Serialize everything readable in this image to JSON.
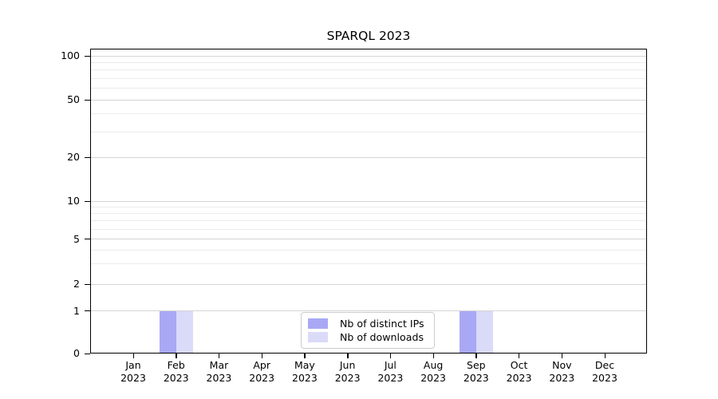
{
  "chart_data": {
    "type": "bar",
    "title": "SPARQL 2023",
    "categories": [
      "Jan",
      "Feb",
      "Mar",
      "Apr",
      "May",
      "Jun",
      "Jul",
      "Aug",
      "Sep",
      "Oct",
      "Nov",
      "Dec"
    ],
    "category_year": "2023",
    "series": [
      {
        "name": "Nb of distinct IPs",
        "color": "#a8a8f5",
        "values": [
          0,
          1,
          0,
          0,
          0,
          0,
          0,
          0,
          1,
          0,
          0,
          0
        ]
      },
      {
        "name": "Nb of downloads",
        "color": "#dadaf9",
        "values": [
          0,
          1,
          0,
          0,
          0,
          0,
          0,
          0,
          1,
          0,
          0,
          0
        ]
      }
    ],
    "xlabel": "",
    "ylabel": "",
    "yscale": "symlog",
    "yticks": [
      0,
      1,
      2,
      5,
      10,
      20,
      50,
      100
    ],
    "ylim": [
      0,
      110
    ],
    "grid": true,
    "legend_position": "bottom-center"
  }
}
